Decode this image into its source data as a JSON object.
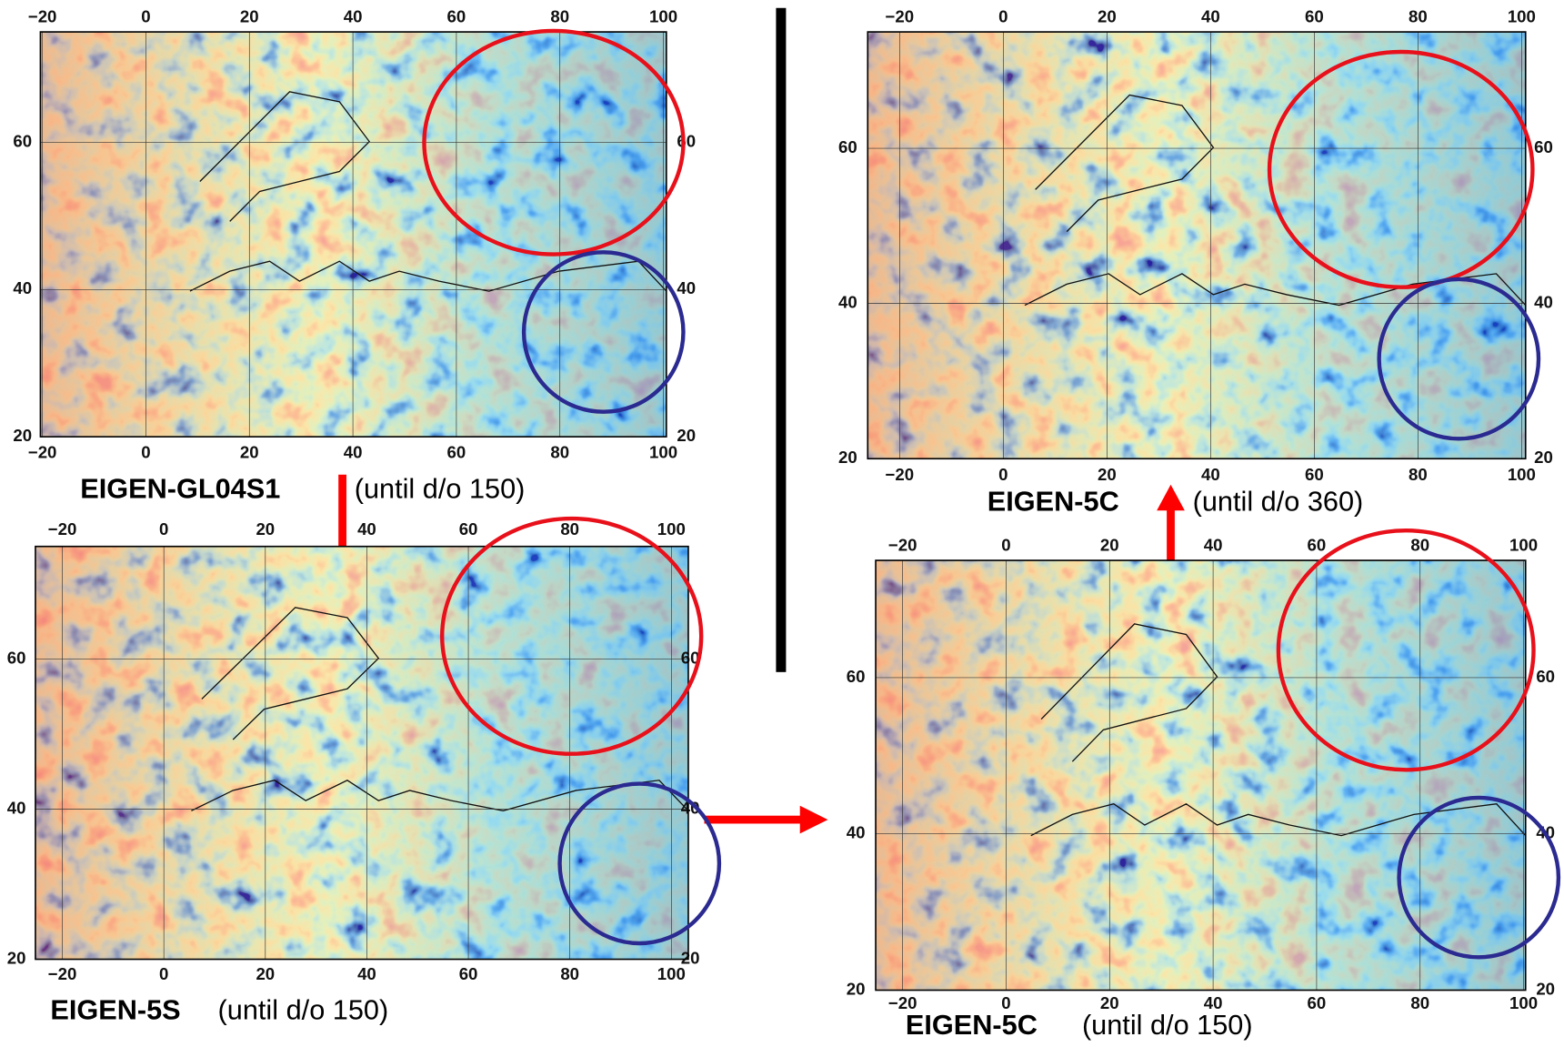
{
  "panels": [
    {
      "x_ticks": [
        "−20",
        "0",
        "20",
        "40",
        "60",
        "80",
        "100"
      ],
      "y_ticks": [
        "20",
        "40",
        "60"
      ],
      "model": "EIGEN-GL04S1",
      "degree": "(until d/o 150)"
    },
    {
      "x_ticks": [
        "−20",
        "0",
        "20",
        "40",
        "60",
        "80",
        "100"
      ],
      "y_ticks": [
        "20",
        "40",
        "60"
      ],
      "model": "EIGEN-5S",
      "degree": "(until d/o 150)"
    },
    {
      "x_ticks": [
        "−20",
        "0",
        "20",
        "40",
        "60",
        "80",
        "100"
      ],
      "y_ticks": [
        "20",
        "40",
        "60"
      ],
      "model": "EIGEN-5C",
      "degree": "(until d/o 360)"
    },
    {
      "x_ticks": [
        "−20",
        "0",
        "20",
        "40",
        "60",
        "80",
        "100"
      ],
      "y_ticks": [
        "20",
        "40",
        "60"
      ],
      "model": "EIGEN-5C",
      "degree": "(until d/o 150)"
    }
  ]
}
